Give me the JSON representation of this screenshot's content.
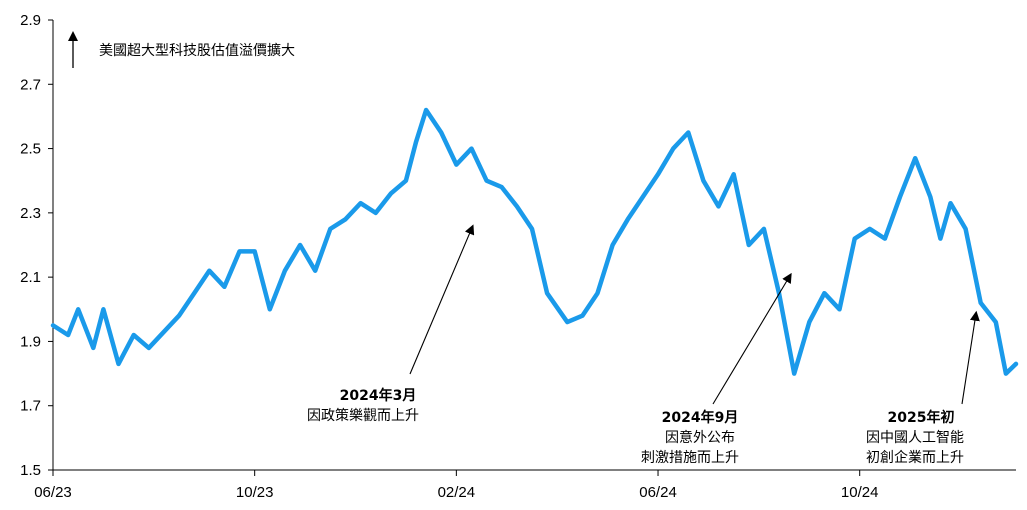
{
  "chart_data": {
    "type": "line",
    "title": "",
    "xlabel": "",
    "ylabel": "",
    "ylim": [
      1.5,
      2.9
    ],
    "yticks": [
      1.5,
      1.7,
      1.9,
      2.1,
      2.3,
      2.5,
      2.7,
      2.9
    ],
    "ytick_labels": [
      "1.5",
      "1.7",
      "1.9",
      "2.1",
      "2.3",
      "2.5",
      "2.7",
      "2.9"
    ],
    "xlim": [
      0,
      19.1
    ],
    "xticks": [
      0,
      4,
      8,
      12,
      16
    ],
    "xtick_labels": [
      "06/23",
      "10/23",
      "02/24",
      "06/24",
      "10/24"
    ],
    "x_unit": "months since 06/23",
    "grid": false,
    "line_color": "#1a9aea",
    "legend_arrow_label": "美國超大型科技股估值溢價擴大",
    "series": [
      {
        "name": "",
        "x": [
          0,
          0.3,
          0.5,
          0.8,
          1.0,
          1.3,
          1.6,
          1.9,
          2.2,
          2.5,
          2.8,
          3.1,
          3.4,
          3.7,
          4.0,
          4.3,
          4.6,
          4.9,
          5.2,
          5.5,
          5.8,
          6.1,
          6.4,
          6.7,
          7.0,
          7.2,
          7.4,
          7.7,
          8.0,
          8.3,
          8.6,
          8.9,
          9.2,
          9.5,
          9.8,
          10.2,
          10.5,
          10.8,
          11.1,
          11.4,
          11.7,
          12.0,
          12.3,
          12.6,
          12.9,
          13.2,
          13.5,
          13.8,
          14.1,
          14.4,
          14.7,
          15.0,
          15.3,
          15.6,
          15.9,
          16.2,
          16.5,
          16.8,
          17.1,
          17.4,
          17.6,
          17.8,
          18.1,
          18.4,
          18.7,
          18.9,
          19.1
        ],
        "values": [
          1.95,
          1.92,
          2.0,
          1.88,
          2.0,
          1.83,
          1.92,
          1.88,
          1.93,
          1.98,
          2.05,
          2.12,
          2.07,
          2.18,
          2.18,
          2.0,
          2.12,
          2.2,
          2.12,
          2.25,
          2.28,
          2.33,
          2.3,
          2.36,
          2.4,
          2.52,
          2.62,
          2.55,
          2.45,
          2.5,
          2.4,
          2.38,
          2.32,
          2.25,
          2.05,
          1.96,
          1.98,
          2.05,
          2.2,
          2.28,
          2.35,
          2.42,
          2.5,
          2.55,
          2.4,
          2.32,
          2.42,
          2.2,
          2.25,
          2.05,
          1.8,
          1.96,
          2.05,
          2.0,
          2.22,
          2.25,
          2.22,
          2.35,
          2.47,
          2.35,
          2.22,
          2.33,
          2.25,
          2.02,
          1.96,
          1.8,
          1.83
        ]
      }
    ],
    "annotations": [
      {
        "x": 8.3,
        "y": 2.25,
        "line1": "2024年3月",
        "line2": "因政策樂觀而上升",
        "line3": ""
      },
      {
        "x": 14.6,
        "y": 2.1,
        "line1": "2024年9月",
        "line2": "因意外公布",
        "line3": "刺激措施而上升"
      },
      {
        "x": 18.3,
        "y": 1.98,
        "line1": "2025年初",
        "line2": "因中國人工智能",
        "line3": "初創企業而上升"
      }
    ]
  }
}
